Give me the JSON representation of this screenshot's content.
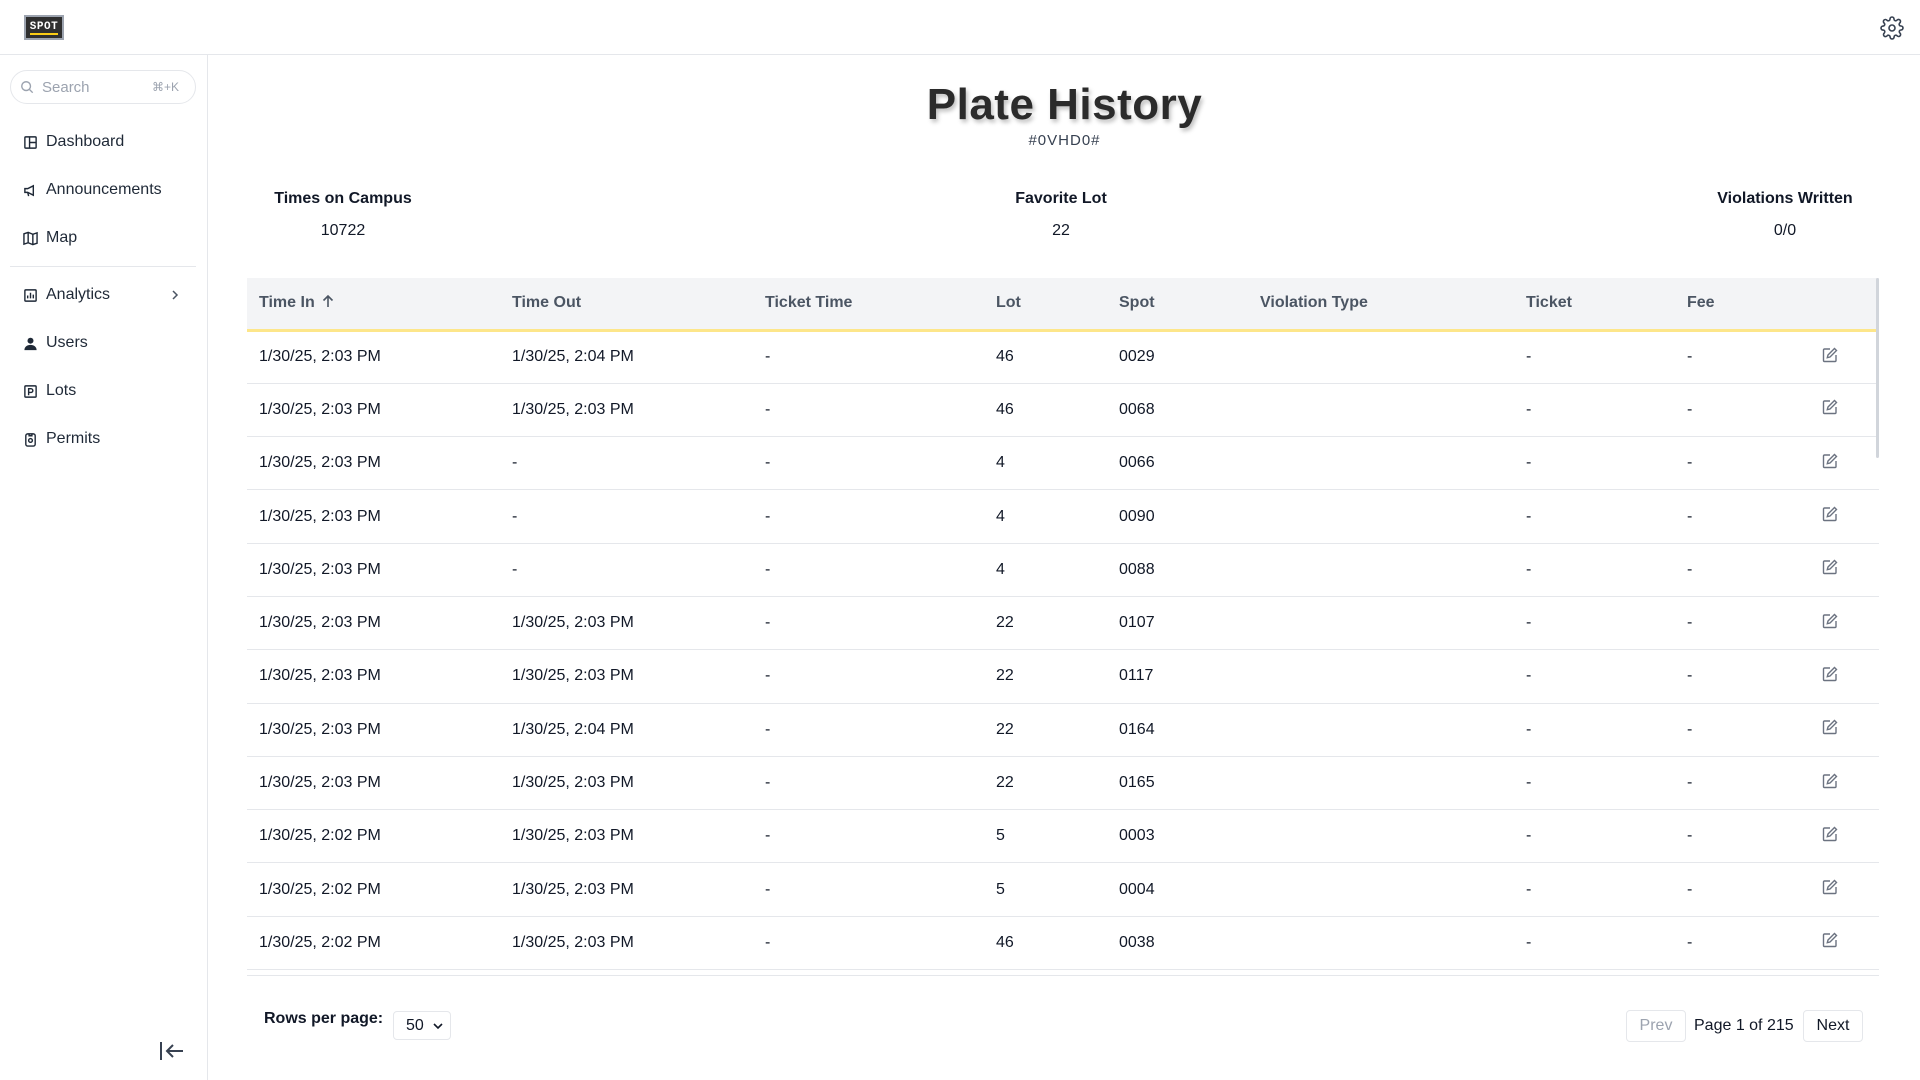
{
  "app": {
    "logo_text": "SPOT"
  },
  "search": {
    "placeholder": "Search",
    "shortcut": "⌘+K"
  },
  "sidebar": {
    "items": [
      {
        "label": "Dashboard",
        "icon": "dashboard-icon"
      },
      {
        "label": "Announcements",
        "icon": "megaphone-icon"
      },
      {
        "label": "Map",
        "icon": "map-icon"
      },
      {
        "label": "Analytics",
        "icon": "analytics-icon"
      },
      {
        "label": "Users",
        "icon": "user-icon"
      },
      {
        "label": "Lots",
        "icon": "parking-icon"
      },
      {
        "label": "Permits",
        "icon": "permit-icon"
      }
    ]
  },
  "page": {
    "title": "Plate History",
    "plate": "#0VHD0#"
  },
  "stats": [
    {
      "label": "Times on Campus",
      "value": "10722"
    },
    {
      "label": "Favorite Lot",
      "value": "22"
    },
    {
      "label": "Violations Written",
      "value": "0/0"
    }
  ],
  "table": {
    "headers": [
      "Time In",
      "Time Out",
      "Ticket Time",
      "Lot",
      "Spot",
      "Violation Type",
      "Ticket",
      "Fee",
      ""
    ],
    "sort": {
      "column": "Time In",
      "direction": "ascending"
    },
    "rows": [
      [
        "1/30/25, 2:03 PM",
        "1/30/25, 2:04 PM",
        "-",
        "46",
        "0029",
        "",
        "-",
        "-"
      ],
      [
        "1/30/25, 2:03 PM",
        "1/30/25, 2:03 PM",
        "-",
        "46",
        "0068",
        "",
        "-",
        "-"
      ],
      [
        "1/30/25, 2:03 PM",
        "-",
        "-",
        "4",
        "0066",
        "",
        "-",
        "-"
      ],
      [
        "1/30/25, 2:03 PM",
        "-",
        "-",
        "4",
        "0090",
        "",
        "-",
        "-"
      ],
      [
        "1/30/25, 2:03 PM",
        "-",
        "-",
        "4",
        "0088",
        "",
        "-",
        "-"
      ],
      [
        "1/30/25, 2:03 PM",
        "1/30/25, 2:03 PM",
        "-",
        "22",
        "0107",
        "",
        "-",
        "-"
      ],
      [
        "1/30/25, 2:03 PM",
        "1/30/25, 2:03 PM",
        "-",
        "22",
        "0117",
        "",
        "-",
        "-"
      ],
      [
        "1/30/25, 2:03 PM",
        "1/30/25, 2:04 PM",
        "-",
        "22",
        "0164",
        "",
        "-",
        "-"
      ],
      [
        "1/30/25, 2:03 PM",
        "1/30/25, 2:03 PM",
        "-",
        "22",
        "0165",
        "",
        "-",
        "-"
      ],
      [
        "1/30/25, 2:02 PM",
        "1/30/25, 2:03 PM",
        "-",
        "5",
        "0003",
        "",
        "-",
        "-"
      ],
      [
        "1/30/25, 2:02 PM",
        "1/30/25, 2:03 PM",
        "-",
        "5",
        "0004",
        "",
        "-",
        "-"
      ],
      [
        "1/30/25, 2:02 PM",
        "1/30/25, 2:03 PM",
        "-",
        "46",
        "0038",
        "",
        "-",
        "-"
      ]
    ]
  },
  "pagination": {
    "rows_per_page_label": "Rows per page:",
    "rows_per_page": "50",
    "prev_label": "Prev",
    "page_info": "Page 1 of 215",
    "next_label": "Next"
  },
  "colors": {
    "header_accent": "#fde68a",
    "brand_yellow": "#facc15"
  }
}
